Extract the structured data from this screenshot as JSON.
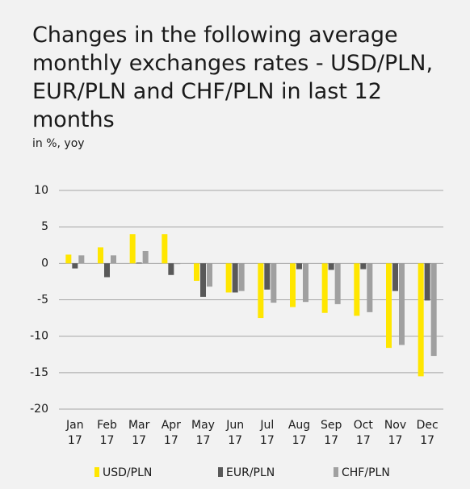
{
  "chart_data": {
    "type": "bar",
    "title": "Changes in the following average monthly exchanges rates - USD/PLN, EUR/PLN and CHF/PLN in last 12 months",
    "subtitle": "in %, yoy",
    "categories": [
      "Jan 17",
      "Feb 17",
      "Mar 17",
      "Apr 17",
      "May 17",
      "Jun 17",
      "Jul 17",
      "Aug 17",
      "Sep 17",
      "Oct 17",
      "Nov 17",
      "Dec 17"
    ],
    "series": [
      {
        "name": "USD/PLN",
        "color": "#ffe600",
        "values": [
          1.2,
          2.2,
          4.0,
          4.0,
          -2.4,
          -4.0,
          -7.5,
          -6.0,
          -6.8,
          -7.2,
          -11.6,
          -15.5
        ]
      },
      {
        "name": "EUR/PLN",
        "color": "#595959",
        "values": [
          -0.7,
          -1.9,
          0.1,
          -1.6,
          -4.6,
          -4.0,
          -3.6,
          -0.8,
          -0.9,
          -0.8,
          -3.8,
          -5.1
        ]
      },
      {
        "name": "CHF/PLN",
        "color": "#a0a0a0",
        "values": [
          1.1,
          1.1,
          1.7,
          -0.1,
          -3.2,
          -3.8,
          -5.4,
          -5.3,
          -5.6,
          -6.7,
          -11.2,
          -12.7
        ]
      }
    ],
    "ylim": [
      -20,
      10
    ],
    "yticks": [
      -20,
      -15,
      -10,
      -5,
      0,
      5,
      10
    ],
    "grid": true,
    "legend": "bottom"
  }
}
